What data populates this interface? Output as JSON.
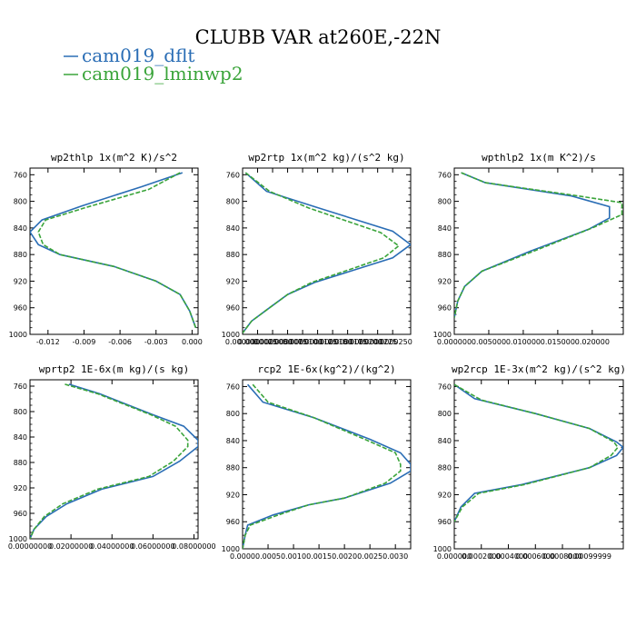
{
  "title": "CLUBB VAR at260E,-22N",
  "colors": {
    "dflt": "#2a6db5",
    "lminwp2": "#3aa43a"
  },
  "legend": [
    {
      "label": "cam019_dflt",
      "color": "#2a6db5",
      "dash": ""
    },
    {
      "label": "cam019_lminwp2",
      "color": "#3aa43a",
      "dash": ""
    }
  ],
  "chart_data": [
    {
      "type": "line",
      "title": "wp2thlp  1x(m^2 K)/s^2",
      "xlim": [
        -0.0135,
        0.0005
      ],
      "ylim": [
        1000,
        750
      ],
      "xticks": [
        -0.012,
        -0.009,
        -0.006,
        -0.003,
        0.0
      ],
      "xtick_labels": [
        "-0.012",
        "-0.009",
        "-0.006",
        "-0.003",
        "0.000"
      ],
      "yticks": [
        760,
        800,
        840,
        880,
        920,
        960,
        1000
      ],
      "series": [
        {
          "name": "cam019_dflt",
          "x": [
            -0.0008,
            -0.0042,
            -0.0092,
            -0.0125,
            -0.0135,
            -0.0128,
            -0.011,
            -0.0065,
            -0.003,
            -0.001,
            -0.0002,
            0.0003
          ],
          "y": [
            757,
            778,
            807,
            828,
            846,
            865,
            880,
            898,
            920,
            940,
            965,
            990
          ]
        },
        {
          "name": "cam019_lminwp2",
          "x": [
            -0.001,
            -0.0036,
            -0.0088,
            -0.0122,
            -0.0128,
            -0.0124,
            -0.011,
            -0.0065,
            -0.003,
            -0.001,
            -0.0002,
            0.0003
          ],
          "y": [
            757,
            782,
            809,
            828,
            846,
            865,
            880,
            898,
            920,
            940,
            965,
            990
          ]
        }
      ]
    },
    {
      "type": "line",
      "title": "wp2rtp  1x(m^2 kg)/(s^2 kg)",
      "xlim": [
        0.0,
        2.8e-05
      ],
      "ylim": [
        1000,
        750
      ],
      "xticks": [
        0.0,
        2.5e-06,
        5e-06,
        7.5e-06,
        1e-05,
        1.25e-05,
        1.5e-05,
        1.75e-05,
        2e-05,
        2.25e-05,
        2.5e-05
      ],
      "xtick_labels": [
        "0.000000",
        "0.0000025",
        "0.0000050",
        "0.0000075",
        "0.0000100",
        "0.0000125",
        "0.0000150",
        "0.0000175",
        "0.0000200",
        "0.0000225",
        "0.0000250"
      ],
      "yticks": [
        760,
        800,
        840,
        880,
        920,
        960,
        1000
      ],
      "series": [
        {
          "name": "cam019_dflt",
          "x": [
            5e-07,
            4e-06,
            1.2e-05,
            2.5e-05,
            2.8e-05,
            2.5e-05,
            1.2e-05,
            7.5e-06,
            4.5e-06,
            1.5e-06,
            0.0
          ],
          "y": [
            757,
            785,
            808,
            845,
            865,
            885,
            922,
            940,
            960,
            980,
            998
          ]
        },
        {
          "name": "cam019_lminwp2",
          "x": [
            5e-07,
            4.5e-06,
            1.1e-05,
            2.3e-05,
            2.6e-05,
            2.35e-05,
            1.15e-05,
            7.5e-06,
            4.5e-06,
            1.5e-06,
            0.0
          ],
          "y": [
            757,
            785,
            810,
            847,
            867,
            885,
            922,
            940,
            960,
            980,
            998
          ]
        }
      ]
    },
    {
      "type": "line",
      "title": "wpthlp2  1x(m K^2)/s",
      "xlim": [
        0.0,
        0.0245
      ],
      "ylim": [
        1000,
        750
      ],
      "xticks": [
        0.0,
        0.005,
        0.01,
        0.015,
        0.02
      ],
      "xtick_labels": [
        "0.000000",
        "0.005000",
        "0.010000",
        "0.015000",
        "0.020000"
      ],
      "yticks": [
        760,
        800,
        840,
        880,
        920,
        960,
        1000
      ],
      "series": [
        {
          "name": "cam019_dflt",
          "x": [
            0.001,
            0.0045,
            0.017,
            0.0225,
            0.0225,
            0.0195,
            0.011,
            0.004,
            0.0015,
            0.0005,
            0.0
          ],
          "y": [
            757,
            772,
            792,
            808,
            825,
            842,
            875,
            905,
            928,
            950,
            975
          ]
        },
        {
          "name": "cam019_lminwp2",
          "x": [
            0.001,
            0.0045,
            0.018,
            0.0243,
            0.0243,
            0.02,
            0.0115,
            0.004,
            0.0015,
            0.0005,
            0.0
          ],
          "y": [
            757,
            772,
            792,
            802,
            820,
            840,
            875,
            905,
            928,
            950,
            975
          ]
        }
      ]
    },
    {
      "type": "line",
      "title": "wprtp2  1E-6x(m kg)/(s kg)",
      "xlim": [
        0.0,
        0.082
      ],
      "ylim": [
        1000,
        750
      ],
      "xticks": [
        0.0,
        0.02,
        0.04,
        0.06,
        0.08
      ],
      "xtick_labels": [
        "0.00000000",
        "0.02000000",
        "0.04000000",
        "0.06000000",
        "0.08000000"
      ],
      "yticks": [
        760,
        800,
        840,
        880,
        920,
        960,
        1000
      ],
      "series": [
        {
          "name": "cam019_dflt",
          "x": [
            0.019,
            0.034,
            0.06,
            0.075,
            0.082,
            0.082,
            0.073,
            0.06,
            0.035,
            0.018,
            0.008,
            0.002,
            0.0
          ],
          "y": [
            757,
            772,
            805,
            823,
            845,
            855,
            878,
            902,
            922,
            945,
            965,
            985,
            1000
          ]
        },
        {
          "name": "cam019_lminwp2",
          "x": [
            0.017,
            0.033,
            0.059,
            0.071,
            0.077,
            0.077,
            0.07,
            0.058,
            0.033,
            0.016,
            0.007,
            0.002,
            0.0
          ],
          "y": [
            757,
            772,
            805,
            823,
            845,
            855,
            878,
            902,
            922,
            945,
            965,
            985,
            1000
          ]
        }
      ]
    },
    {
      "type": "line",
      "title": "rcp2  1E-6x(kg^2)/(kg^2)",
      "xlim": [
        0.0,
        0.0033
      ],
      "ylim": [
        1000,
        750
      ],
      "xticks": [
        0.0,
        0.0005,
        0.001,
        0.0015,
        0.002,
        0.0025,
        0.003
      ],
      "xtick_labels": [
        "0.0000",
        "0.0005",
        "0.0010",
        "0.0015",
        "0.0020",
        "0.0025",
        "0.0030"
      ],
      "yticks": [
        760,
        800,
        840,
        880,
        920,
        960,
        1000
      ],
      "series": [
        {
          "name": "cam019_dflt",
          "x": [
            0.0001,
            0.0004,
            0.0014,
            0.0025,
            0.0031,
            0.0033,
            0.0033,
            0.0029,
            0.002,
            0.0013,
            0.0006,
            0.0001,
            5e-05,
            0.0
          ],
          "y": [
            757,
            783,
            806,
            838,
            858,
            875,
            885,
            903,
            925,
            935,
            950,
            965,
            980,
            1000
          ]
        },
        {
          "name": "cam019_lminwp2",
          "x": [
            0.0002,
            0.0005,
            0.0014,
            0.0024,
            0.003,
            0.0031,
            0.0031,
            0.0028,
            0.002,
            0.0013,
            0.0007,
            0.00015,
            5e-05,
            0.0
          ],
          "y": [
            757,
            783,
            806,
            838,
            858,
            875,
            885,
            903,
            925,
            935,
            950,
            965,
            980,
            1000
          ]
        }
      ]
    },
    {
      "type": "line",
      "title": "wp2rcp  1E-3x(m^2 kg)/(s^2 kg)",
      "xlim": [
        0.0,
        0.00125
      ],
      "ylim": [
        1000,
        750
      ],
      "xticks": [
        0.0,
        0.0002,
        0.0004,
        0.0006,
        0.0008,
        0.001
      ],
      "xtick_labels": [
        "0.000000",
        "0.0002000",
        "0.0004000",
        "0.0006000",
        "0.0008000",
        "0.00099999"
      ],
      "yticks": [
        760,
        800,
        840,
        880,
        920,
        960,
        1000
      ],
      "series": [
        {
          "name": "cam019_dflt",
          "x": [
            0.0,
            0.00015,
            0.0006,
            0.001,
            0.0012,
            0.00125,
            0.0012,
            0.001,
            0.0005,
            0.00015,
            5e-05,
            0.0
          ],
          "y": [
            757,
            778,
            800,
            822,
            842,
            850,
            862,
            880,
            905,
            918,
            938,
            960
          ]
        },
        {
          "name": "cam019_lminwp2",
          "x": [
            0.0,
            0.0002,
            0.0006,
            0.001,
            0.00118,
            0.00121,
            0.00116,
            0.001,
            0.00052,
            0.00018,
            6e-05,
            0.0
          ],
          "y": [
            757,
            780,
            800,
            822,
            842,
            850,
            862,
            880,
            905,
            918,
            938,
            960
          ]
        }
      ]
    }
  ]
}
